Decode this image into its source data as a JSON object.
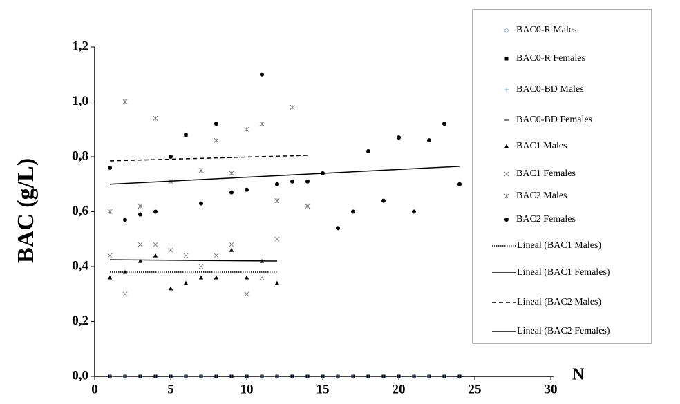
{
  "chart_data": {
    "type": "scatter",
    "y_label": "BAC (g/L)",
    "x_label": "N",
    "xlim": [
      0,
      30
    ],
    "xticks": [
      0,
      5,
      10,
      15,
      20,
      25,
      30
    ],
    "ylim": [
      0,
      1.2
    ],
    "yticks": [
      {
        "value": 0,
        "label": "0,0"
      },
      {
        "value": 0.2,
        "label": "0,2"
      },
      {
        "value": 0.4,
        "label": "0,4"
      },
      {
        "value": 0.6,
        "label": "0,6"
      },
      {
        "value": 0.8,
        "label": "0,8"
      },
      {
        "value": 1.0,
        "label": "1,0"
      },
      {
        "value": 1.2,
        "label": "1,2"
      }
    ],
    "grid": false,
    "legend": "right",
    "series": [
      {
        "name": "BAC0-R Males",
        "color": "#8fb4e0",
        "marker": "diamond",
        "x": [
          1,
          2,
          3,
          4,
          5,
          6,
          7,
          8,
          9,
          10,
          11,
          12,
          13,
          14,
          15,
          16,
          17,
          18,
          19,
          20,
          21,
          22,
          23,
          24
        ],
        "values": [
          0,
          0,
          0,
          0,
          0,
          0,
          0,
          0,
          0,
          0,
          0,
          0,
          0,
          0,
          0,
          0,
          0,
          0,
          0,
          0,
          0,
          0,
          0,
          0
        ]
      },
      {
        "name": "BAC0-R Females",
        "color": "#000000",
        "marker": "square",
        "x": [
          1,
          2,
          3,
          4,
          5,
          6,
          7,
          8,
          9,
          10,
          11,
          12,
          13,
          14,
          15,
          16,
          17,
          18,
          19,
          20,
          21,
          22,
          23,
          24
        ],
        "values": [
          0,
          0,
          0,
          0,
          0,
          0,
          0,
          0,
          0,
          0,
          0,
          0,
          0,
          0,
          0,
          0,
          0,
          0,
          0,
          0,
          0,
          0,
          0,
          0
        ]
      },
      {
        "name": "BAC0-BD Males",
        "color": "#8fb4e0",
        "marker": "plus",
        "x": [
          1,
          2,
          3,
          4,
          5,
          6,
          7,
          8,
          9,
          10,
          11,
          12,
          13,
          14,
          15,
          16,
          17,
          18,
          19,
          20,
          21,
          22,
          23,
          24
        ],
        "values": [
          0,
          0,
          0,
          0,
          0,
          0,
          0,
          0,
          0,
          0,
          0,
          0,
          0,
          0,
          0,
          0,
          0,
          0,
          0,
          0,
          0,
          0,
          0,
          0
        ]
      },
      {
        "name": "BAC0-BD Females",
        "color": "#000000",
        "marker": "dash",
        "x": [
          1,
          2,
          3,
          4,
          5,
          6,
          7,
          8,
          9,
          10,
          11,
          12,
          13,
          14,
          15,
          16,
          17,
          18,
          19,
          20,
          21,
          22,
          23,
          24
        ],
        "values": [
          0,
          0,
          0,
          0,
          0,
          0,
          0,
          0,
          0,
          0,
          0,
          0,
          0,
          0,
          0,
          0,
          0,
          0,
          0,
          0,
          0,
          0,
          0,
          0
        ]
      },
      {
        "name": "BAC1 Males",
        "color": "#000000",
        "marker": "triangle",
        "x": [
          1,
          2,
          3,
          4,
          5,
          6,
          7,
          8,
          9,
          10,
          11,
          12
        ],
        "values": [
          0.36,
          0.38,
          0.42,
          0.44,
          0.32,
          0.34,
          0.36,
          0.36,
          0.46,
          0.36,
          0.42,
          0.34
        ]
      },
      {
        "name": "BAC1 Females",
        "color": "#808080",
        "marker": "x",
        "x": [
          1,
          2,
          3,
          4,
          5,
          6,
          7,
          8,
          9,
          10,
          11,
          12
        ],
        "values": [
          0.44,
          0.3,
          0.48,
          0.48,
          0.46,
          0.44,
          0.4,
          0.44,
          0.48,
          0.3,
          0.36,
          0.5
        ]
      },
      {
        "name": "BAC2 Males",
        "color": "#808080",
        "marker": "asterisk",
        "x": [
          1,
          2,
          3,
          4,
          5,
          6,
          7,
          8,
          9,
          10,
          11,
          12,
          13,
          14
        ],
        "values": [
          0.6,
          1.0,
          0.62,
          0.94,
          0.71,
          0.88,
          0.75,
          0.86,
          0.74,
          0.9,
          0.92,
          0.64,
          0.98,
          0.62
        ]
      },
      {
        "name": "BAC2 Females",
        "color": "#000000",
        "marker": "circle",
        "x": [
          1,
          2,
          3,
          4,
          5,
          6,
          7,
          8,
          9,
          10,
          11,
          12,
          13,
          14,
          15,
          16,
          17,
          18,
          19,
          20,
          21,
          22,
          23,
          24
        ],
        "values": [
          0.76,
          0.57,
          0.59,
          0.6,
          0.8,
          0.88,
          0.63,
          0.92,
          0.67,
          0.68,
          1.1,
          0.7,
          0.71,
          0.71,
          0.74,
          0.54,
          0.6,
          0.82,
          0.64,
          0.87,
          0.6,
          0.86,
          0.92,
          0.7
        ]
      },
      {
        "name": "Lineal (BAC1 Males)",
        "color": "#000000",
        "line": "dotted",
        "x": [
          1,
          12
        ],
        "values": [
          0.38,
          0.38
        ]
      },
      {
        "name": "Lineal (BAC1 Females)",
        "color": "#000000",
        "line": "solid",
        "x": [
          1,
          12
        ],
        "values": [
          0.425,
          0.42
        ]
      },
      {
        "name": "Lineal (BAC2 Males)",
        "color": "#000000",
        "line": "dashed",
        "x": [
          1,
          14
        ],
        "values": [
          0.785,
          0.805
        ]
      },
      {
        "name": "Lineal (BAC2 Females)",
        "color": "#000000",
        "line": "solid",
        "x": [
          1,
          24
        ],
        "values": [
          0.7,
          0.765
        ]
      }
    ]
  }
}
